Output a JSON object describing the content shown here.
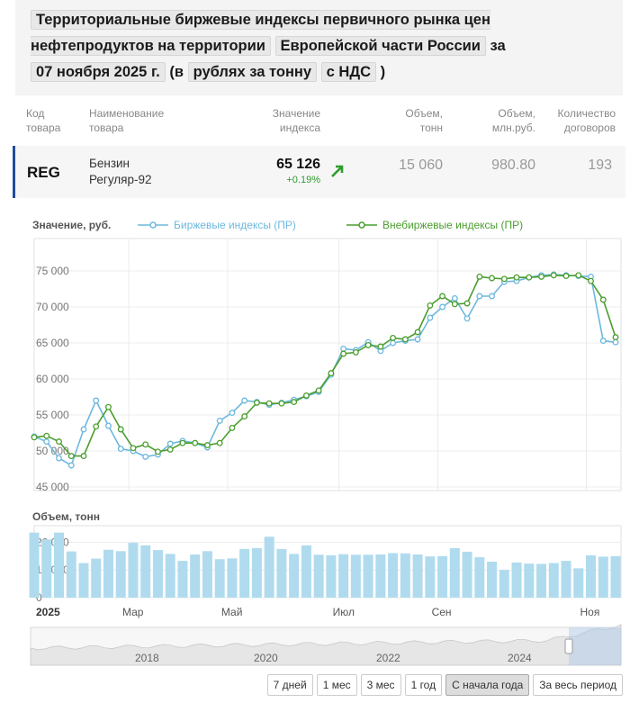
{
  "header": {
    "prefix": "Территориальные биржевые индексы первичного рынка цен нефтепродуктов на территории",
    "region": "Европейской части России",
    "mid": "за",
    "date": "07 ноября 2025 г.",
    "open_paren": "(в",
    "unit": "рублях за тонну",
    "vat": "с НДС",
    "close_paren": ")"
  },
  "table": {
    "headers": {
      "code": [
        "Код",
        "товара"
      ],
      "name": [
        "Наименование",
        "товара"
      ],
      "index": [
        "Значение",
        "индекса"
      ],
      "volume_t": [
        "Объем,",
        "тонн"
      ],
      "volume_rub": [
        "Объем,",
        "млн.руб."
      ],
      "contracts": [
        "Количество",
        "договоров"
      ]
    },
    "row": {
      "code": "REG",
      "name": [
        "Бензин",
        "Регуляр-92"
      ],
      "index": "65 126",
      "change": "+0.19%",
      "volume_t": "15 060",
      "volume_rub": "980.80",
      "contracts": "193"
    }
  },
  "chart": {
    "value_label": "Значение, руб.",
    "volume_label": "Объем, тонн",
    "colors": {
      "exchange": "#6db8de",
      "otc": "#4a9e2e",
      "bars": "#b0dbee"
    }
  },
  "chart_data": {
    "type": "line",
    "series": [
      {
        "name": "Биржевые индексы (ПР)",
        "values": [
          52000,
          51300,
          49000,
          48000,
          53000,
          57000,
          53500,
          50300,
          50000,
          49200,
          49500,
          51000,
          51400,
          51100,
          50500,
          54200,
          55300,
          57000,
          56800,
          56400,
          56700,
          57100,
          57600,
          58200,
          60600,
          64200,
          64000,
          65100,
          63900,
          65000,
          65300,
          65500,
          68500,
          70000,
          71200,
          68400,
          71500,
          71500,
          73500,
          73600,
          74100,
          74400,
          74500,
          74400,
          74300,
          74200,
          65300,
          65100
        ],
        "volume": [
          23500,
          21000,
          23500,
          16700,
          12500,
          14100,
          17300,
          16800,
          19800,
          18900,
          17200,
          15800,
          13300,
          15600,
          16800,
          13900,
          14200,
          17600,
          17900,
          22000,
          17600,
          15800,
          18900,
          15500,
          15300,
          15700,
          15500,
          15500,
          15600,
          16100,
          16000,
          15600,
          14900,
          15000,
          17900,
          16600,
          14600,
          13000,
          10000,
          12700,
          12300,
          12200,
          12500,
          13300,
          10600,
          15300,
          14800,
          15000
        ]
      },
      {
        "name": "Внебиржевые индексы (ПР)",
        "values": [
          51900,
          52100,
          51300,
          49300,
          49300,
          53400,
          56100,
          53000,
          50400,
          50900,
          49900,
          50200,
          51100,
          51100,
          50800,
          51100,
          53200,
          54800,
          56700,
          56600,
          56600,
          56800,
          57700,
          58400,
          60800,
          63500,
          63700,
          64700,
          64500,
          65700,
          65500,
          66500,
          70200,
          71500,
          70400,
          70500,
          74200,
          74000,
          73900,
          74100,
          74100,
          74200,
          74400,
          74300,
          74400,
          73600,
          71000,
          65800
        ]
      }
    ],
    "x_labels": [
      "2025",
      "Мар",
      "Май",
      "Июл",
      "Сен",
      "Ноя"
    ],
    "y_ticks": [
      "45 000",
      "50 000",
      "55 000",
      "60 000",
      "65 000",
      "70 000",
      "75 000"
    ],
    "ylim": [
      44500,
      79500
    ],
    "volume_ticks": [
      "0",
      "10 000",
      "20 000"
    ],
    "volume_ylim": [
      0,
      26000
    ],
    "navigator_labels": [
      "2018",
      "2020",
      "2022",
      "2024"
    ]
  },
  "range_buttons": [
    "7 дней",
    "1 мес",
    "3 мес",
    "1 год",
    "С начала года",
    "За весь период"
  ],
  "active_range": "С начала года"
}
